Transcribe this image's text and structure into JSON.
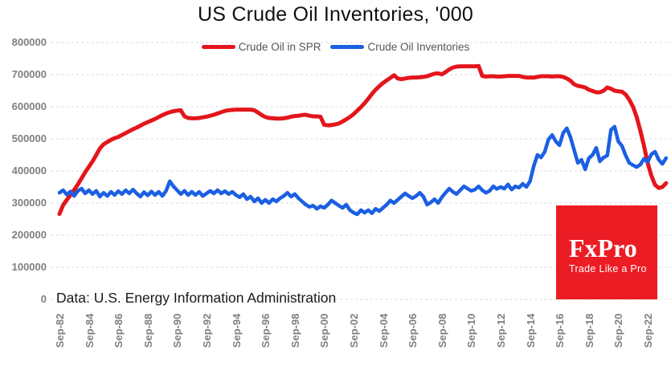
{
  "header": {
    "title": "US Crude Oil Inventories, '000"
  },
  "legend": [
    {
      "label": "Crude Oil in SPR",
      "color": "#e3161c"
    },
    {
      "label": "Crude Oil Inventories",
      "color": "#1b5fe2"
    }
  ],
  "source_note": "Data: U.S. Energy Information Administration",
  "logo": {
    "name": "FxPro",
    "tagline": "Trade Like a Pro",
    "background": "#ec1c24",
    "text_color": "#ffffff"
  },
  "colors": {
    "grid": "#d9d9d9",
    "axis_label": "#7f7f7f",
    "title": "#111111",
    "legend_text": "#555555"
  },
  "chart_data": {
    "type": "line",
    "title": "US Crude Oil Inventories, '000",
    "xlabel": "",
    "ylabel": "",
    "ylim": [
      0,
      800000
    ],
    "grid": true,
    "grid_style": "dashed",
    "legend_position": "top",
    "x_start": 1982.75,
    "x_step": 0.25,
    "x_tick_labels": [
      "Sep-82",
      "Sep-84",
      "Sep-86",
      "Sep-88",
      "Sep-90",
      "Sep-92",
      "Sep-94",
      "Sep-96",
      "Sep-98",
      "Sep-00",
      "Sep-02",
      "Sep-04",
      "Sep-06",
      "Sep-08",
      "Sep-10",
      "Sep-12",
      "Sep-14",
      "Sep-16",
      "Sep-18",
      "Sep-20",
      "Sep-22"
    ],
    "y_ticks": [
      800000,
      700000,
      600000,
      500000,
      400000,
      300000,
      200000,
      100000,
      0
    ],
    "series": [
      {
        "name": "Crude Oil in SPR",
        "color": "#e3161c",
        "width": 5,
        "values": [
          266000,
          294000,
          310000,
          325000,
          341000,
          358000,
          377000,
          396000,
          413000,
          430000,
          450000,
          470000,
          483000,
          490000,
          497000,
          502000,
          506000,
          512000,
          518000,
          524000,
          530000,
          535000,
          541000,
          547000,
          552000,
          557000,
          562000,
          568000,
          574000,
          579000,
          583000,
          586000,
          588000,
          589000,
          570000,
          565000,
          564000,
          564000,
          565000,
          567000,
          569000,
          572000,
          575000,
          579000,
          583000,
          587000,
          589000,
          590000,
          591000,
          591000,
          591000,
          591000,
          591000,
          589000,
          582000,
          574000,
          568000,
          565000,
          564000,
          563000,
          563000,
          564000,
          566000,
          569000,
          571000,
          572000,
          574000,
          575000,
          572000,
          570000,
          570000,
          569000,
          544000,
          542000,
          543000,
          545000,
          548000,
          554000,
          561000,
          568000,
          577000,
          588000,
          599000,
          611000,
          625000,
          640000,
          653000,
          664000,
          674000,
          682000,
          690000,
          698000,
          688000,
          686000,
          688000,
          690000,
          691000,
          691000,
          692000,
          693000,
          695000,
          699000,
          703000,
          704000,
          701000,
          708000,
          716000,
          722000,
          725000,
          726000,
          726000,
          726000,
          726000,
          726000,
          727000,
          696000,
          694000,
          695000,
          695000,
          694000,
          694000,
          695000,
          696000,
          696000,
          696000,
          696000,
          693000,
          691000,
          691000,
          691000,
          693000,
          695000,
          695000,
          695000,
          694000,
          695000,
          695000,
          693000,
          688000,
          681000,
          670000,
          665000,
          663000,
          660000,
          653000,
          649000,
          645000,
          645000,
          650000,
          660000,
          656000,
          650000,
          648000,
          647000,
          638000,
          622000,
          600000,
          568000,
          525000,
          478000,
          425000,
          385000,
          357000,
          347000,
          350000,
          362000
        ]
      },
      {
        "name": "Crude Oil Inventories",
        "color": "#1b5fe2",
        "width": 4.5,
        "values": [
          332000,
          340000,
          326000,
          336000,
          322000,
          338000,
          345000,
          330000,
          340000,
          328000,
          338000,
          320000,
          332000,
          322000,
          335000,
          325000,
          337000,
          328000,
          340000,
          330000,
          342000,
          330000,
          320000,
          334000,
          324000,
          336000,
          325000,
          335000,
          322000,
          338000,
          368000,
          352000,
          340000,
          328000,
          338000,
          325000,
          335000,
          325000,
          335000,
          322000,
          330000,
          338000,
          330000,
          340000,
          330000,
          337000,
          328000,
          335000,
          325000,
          318000,
          328000,
          312000,
          320000,
          305000,
          315000,
          300000,
          310000,
          300000,
          312000,
          305000,
          315000,
          322000,
          332000,
          320000,
          328000,
          315000,
          305000,
          295000,
          288000,
          292000,
          282000,
          290000,
          285000,
          295000,
          308000,
          300000,
          292000,
          285000,
          295000,
          278000,
          270000,
          265000,
          278000,
          270000,
          278000,
          268000,
          282000,
          275000,
          285000,
          295000,
          308000,
          300000,
          310000,
          320000,
          330000,
          322000,
          315000,
          322000,
          332000,
          320000,
          295000,
          302000,
          312000,
          300000,
          318000,
          332000,
          345000,
          335000,
          328000,
          340000,
          352000,
          345000,
          338000,
          342000,
          352000,
          340000,
          332000,
          338000,
          352000,
          344000,
          350000,
          345000,
          358000,
          342000,
          352000,
          348000,
          360000,
          350000,
          368000,
          415000,
          450000,
          442000,
          460000,
          498000,
          512000,
          492000,
          480000,
          518000,
          533000,
          505000,
          465000,
          425000,
          435000,
          405000,
          440000,
          450000,
          472000,
          430000,
          442000,
          448000,
          528000,
          538000,
          492000,
          478000,
          448000,
          425000,
          418000,
          412000,
          420000,
          438000,
          428000,
          452000,
          460000,
          435000,
          422000,
          440000
        ]
      }
    ]
  }
}
